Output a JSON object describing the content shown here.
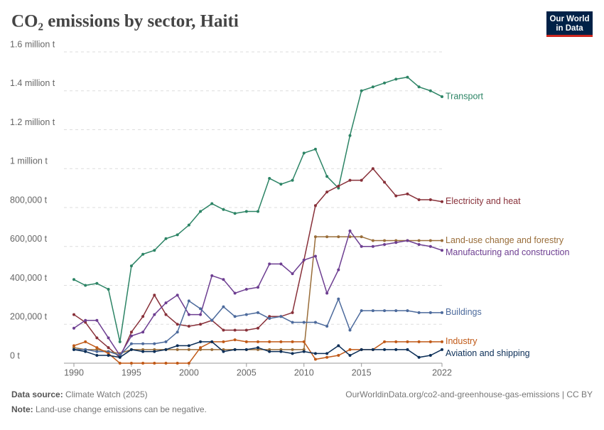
{
  "chart_data": {
    "type": "line",
    "title": "CO₂ emissions by sector, Haiti",
    "logo": [
      "Our World",
      "in Data"
    ],
    "source_label": "Data source:",
    "source": "Climate Watch (2025)",
    "url": "OurWorldinData.org/co2-and-greenhouse-gas-emissions | CC BY",
    "note_label": "Note:",
    "note": "Land-use change emissions can be negative.",
    "x": [
      1990,
      1991,
      1992,
      1993,
      1994,
      1995,
      1996,
      1997,
      1998,
      1999,
      2000,
      2001,
      2002,
      2003,
      2004,
      2005,
      2006,
      2007,
      2008,
      2009,
      2010,
      2011,
      2012,
      2013,
      2014,
      2015,
      2016,
      2017,
      2018,
      2019,
      2020,
      2021,
      2022
    ],
    "xlim": [
      1990,
      2022
    ],
    "xticks": [
      1990,
      1995,
      2000,
      2005,
      2010,
      2015,
      2022
    ],
    "ylim": [
      0,
      1600000
    ],
    "yticks": [
      {
        "value": 0,
        "label": "0 t"
      },
      {
        "value": 200000,
        "label": "200,000 t"
      },
      {
        "value": 400000,
        "label": "400,000 t"
      },
      {
        "value": 600000,
        "label": "600,000 t"
      },
      {
        "value": 800000,
        "label": "800,000 t"
      },
      {
        "value": 1000000,
        "label": "1 million t"
      },
      {
        "value": 1200000,
        "label": "1.2 million t"
      },
      {
        "value": 1400000,
        "label": "1.4 million t"
      },
      {
        "value": 1600000,
        "label": "1.6 million t"
      }
    ],
    "grid": true,
    "series": [
      {
        "name": "Transport",
        "color": "#2c8465",
        "values": [
          430000,
          400000,
          410000,
          380000,
          110000,
          500000,
          560000,
          580000,
          640000,
          660000,
          710000,
          780000,
          820000,
          790000,
          770000,
          780000,
          780000,
          950000,
          920000,
          940000,
          1080000,
          1100000,
          960000,
          900000,
          1170000,
          1400000,
          1420000,
          1440000,
          1460000,
          1470000,
          1420000,
          1400000,
          1370000
        ]
      },
      {
        "name": "Electricity and heat",
        "color": "#883039",
        "values": [
          250000,
          210000,
          130000,
          80000,
          30000,
          160000,
          240000,
          350000,
          250000,
          200000,
          190000,
          200000,
          220000,
          170000,
          170000,
          170000,
          180000,
          240000,
          240000,
          260000,
          530000,
          810000,
          880000,
          910000,
          940000,
          940000,
          1000000,
          930000,
          860000,
          870000,
          840000,
          840000,
          830000
        ]
      },
      {
        "name": "Land-use change and forestry",
        "color": "#996d39",
        "values": [
          80000,
          70000,
          70000,
          60000,
          50000,
          70000,
          70000,
          70000,
          70000,
          70000,
          70000,
          70000,
          70000,
          70000,
          70000,
          70000,
          70000,
          70000,
          70000,
          70000,
          70000,
          650000,
          650000,
          650000,
          650000,
          650000,
          630000,
          630000,
          630000,
          630000,
          630000,
          630000,
          630000
        ]
      },
      {
        "name": "Manufacturing and construction",
        "color": "#6d3e91",
        "values": [
          180000,
          220000,
          220000,
          130000,
          40000,
          140000,
          160000,
          250000,
          310000,
          350000,
          250000,
          250000,
          450000,
          430000,
          360000,
          380000,
          390000,
          510000,
          510000,
          460000,
          530000,
          550000,
          360000,
          480000,
          680000,
          600000,
          600000,
          610000,
          620000,
          630000,
          610000,
          600000,
          580000
        ]
      },
      {
        "name": "Buildings",
        "color": "#4c6a9c",
        "values": [
          70000,
          70000,
          60000,
          60000,
          40000,
          100000,
          100000,
          100000,
          110000,
          160000,
          320000,
          280000,
          220000,
          290000,
          240000,
          250000,
          260000,
          230000,
          240000,
          210000,
          210000,
          210000,
          190000,
          330000,
          170000,
          270000,
          270000,
          270000,
          270000,
          270000,
          260000,
          260000,
          260000
        ]
      },
      {
        "name": "Industry",
        "color": "#c05917",
        "values": [
          90000,
          110000,
          80000,
          50000,
          0,
          0,
          0,
          0,
          0,
          0,
          0,
          80000,
          110000,
          110000,
          120000,
          110000,
          110000,
          110000,
          110000,
          110000,
          110000,
          20000,
          30000,
          40000,
          70000,
          70000,
          70000,
          110000,
          110000,
          110000,
          110000,
          110000,
          110000
        ]
      },
      {
        "name": "Aviation and shipping",
        "color": "#0b2e57",
        "values": [
          70000,
          60000,
          40000,
          40000,
          30000,
          70000,
          60000,
          60000,
          70000,
          90000,
          90000,
          110000,
          110000,
          60000,
          70000,
          70000,
          80000,
          60000,
          60000,
          50000,
          60000,
          50000,
          50000,
          90000,
          40000,
          70000,
          70000,
          70000,
          70000,
          70000,
          30000,
          40000,
          70000
        ]
      }
    ]
  }
}
